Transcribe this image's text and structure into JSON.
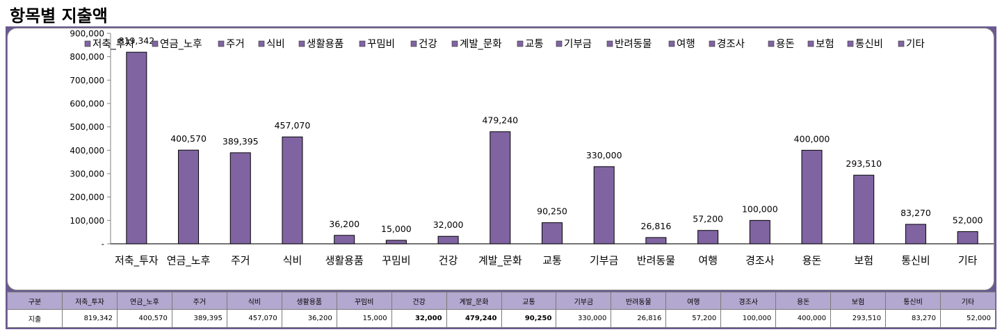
{
  "title": "항목별 지출액",
  "chart_data": {
    "type": "bar",
    "categories": [
      "저축_투자",
      "연금_노후",
      "주거",
      "식비",
      "생활용품",
      "꾸밈비",
      "건강",
      "계발_문화",
      "교통",
      "기부금",
      "반려동물",
      "여행",
      "경조사",
      "용돈",
      "보험",
      "통신비",
      "기타"
    ],
    "series": [
      {
        "name": "",
        "values": [
          819342,
          400570,
          389395,
          457070,
          36200,
          15000,
          32000,
          479240,
          90250,
          330000,
          26816,
          57200,
          100000,
          400000,
          293510,
          83270,
          52000
        ],
        "data_labels": [
          "819,342",
          "400,570",
          "389,395",
          "457,070",
          "36,200",
          "15,000",
          "32,000",
          "479,240",
          "90,250",
          "330,000",
          "26,816",
          "57,200",
          "100,000",
          "400,000",
          "293,510",
          "83,270",
          "52,000"
        ]
      }
    ],
    "ylim": [
      0,
      900000
    ],
    "yticks": [
      0,
      100000,
      200000,
      300000,
      400000,
      500000,
      600000,
      700000,
      800000,
      900000
    ],
    "ytick_labels": [
      "-",
      "100,000",
      "200,000",
      "300,000",
      "400,000",
      "500,000",
      "600,000",
      "700,000",
      "800,000",
      "900,000"
    ],
    "legend": "top",
    "grid": false,
    "bar_color": "#8064a2"
  },
  "table": {
    "header_label": "구분",
    "row_label": "지출",
    "values": [
      "819,342",
      "400,570",
      "389,395",
      "457,070",
      "36,200",
      "15,000",
      "32,000",
      "479,240",
      "90,250",
      "330,000",
      "26,816",
      "57,200",
      "100,000",
      "400,000",
      "293,510",
      "83,270",
      "52,000"
    ],
    "bold": [
      false,
      false,
      false,
      false,
      false,
      false,
      true,
      true,
      true,
      false,
      false,
      false,
      false,
      false,
      false,
      false,
      false
    ]
  }
}
